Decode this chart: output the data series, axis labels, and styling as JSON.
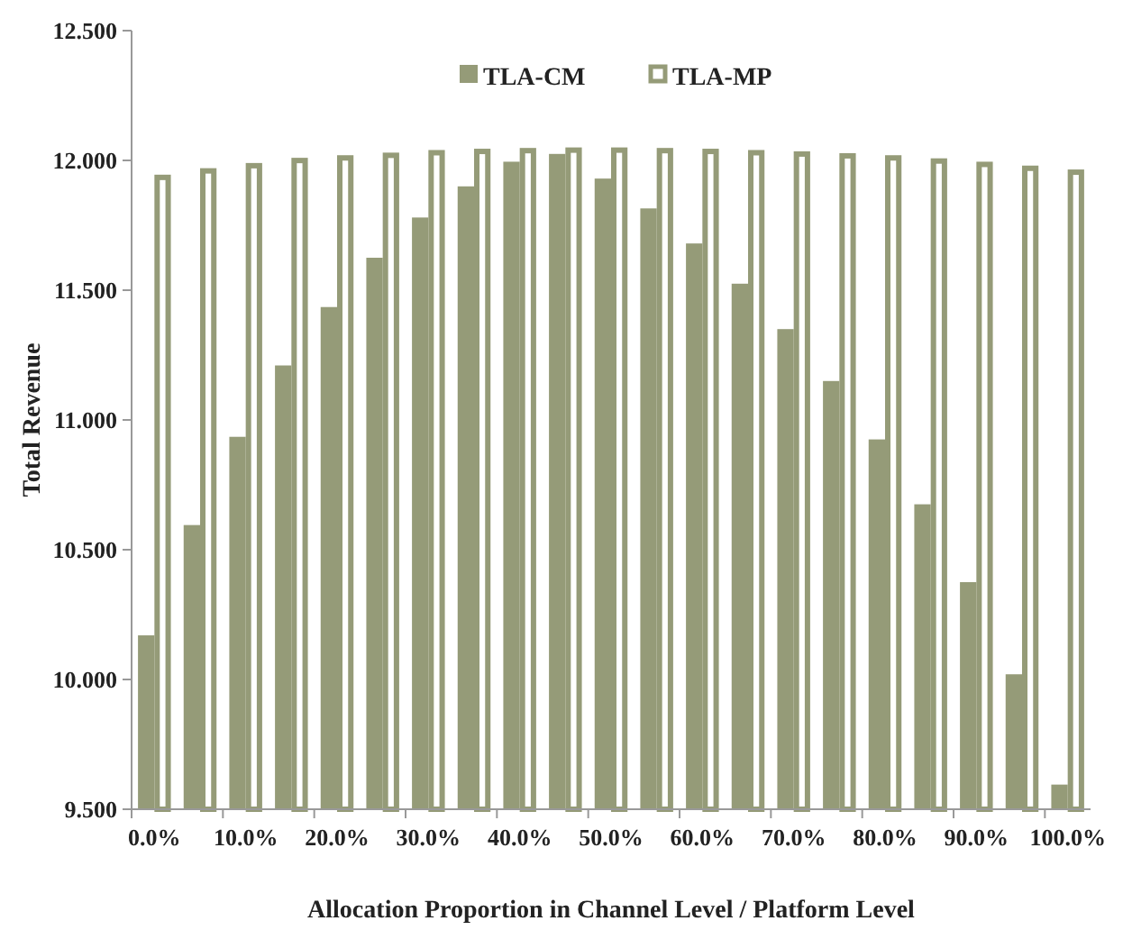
{
  "chart_data": {
    "type": "bar",
    "xlabel": "Allocation Proportion in Channel Level / Platform Level",
    "ylabel": "Total Revenue",
    "categories": [
      "0.0%",
      null,
      "10.0%",
      null,
      "20.0%",
      null,
      "30.0%",
      null,
      "40.0%",
      null,
      "50.0%",
      null,
      "60.0%",
      null,
      "70.0%",
      null,
      "80.0%",
      null,
      "90.0%",
      null,
      "100.0%"
    ],
    "series": [
      {
        "name": "TLA-CM",
        "color": "#959b78",
        "values": [
          10.17,
          10.595,
          10.935,
          11.21,
          11.435,
          11.625,
          11.78,
          11.9,
          11.995,
          12.025,
          11.93,
          11.815,
          11.68,
          11.525,
          11.35,
          11.15,
          10.925,
          10.675,
          10.375,
          10.02,
          9.595
        ]
      },
      {
        "name": "TLA-MP",
        "color": "#959b78",
        "values": [
          11.945,
          11.97,
          11.99,
          12.01,
          12.02,
          12.03,
          12.04,
          12.045,
          12.048,
          12.05,
          12.05,
          12.048,
          12.045,
          12.04,
          12.035,
          12.028,
          12.02,
          12.008,
          11.995,
          11.98,
          11.965
        ]
      }
    ],
    "ylim": [
      9.5,
      12.5
    ],
    "yticks": [
      {
        "value": 9.5,
        "label": "9.500"
      },
      {
        "value": 10,
        "label": "10.000"
      },
      {
        "value": 10.5,
        "label": "10.500"
      },
      {
        "value": 11,
        "label": "11.000"
      },
      {
        "value": 11.5,
        "label": "11.500"
      },
      {
        "value": 12,
        "label": "12.000"
      },
      {
        "value": 12.5,
        "label": "12.500"
      }
    ],
    "legend": "top"
  }
}
